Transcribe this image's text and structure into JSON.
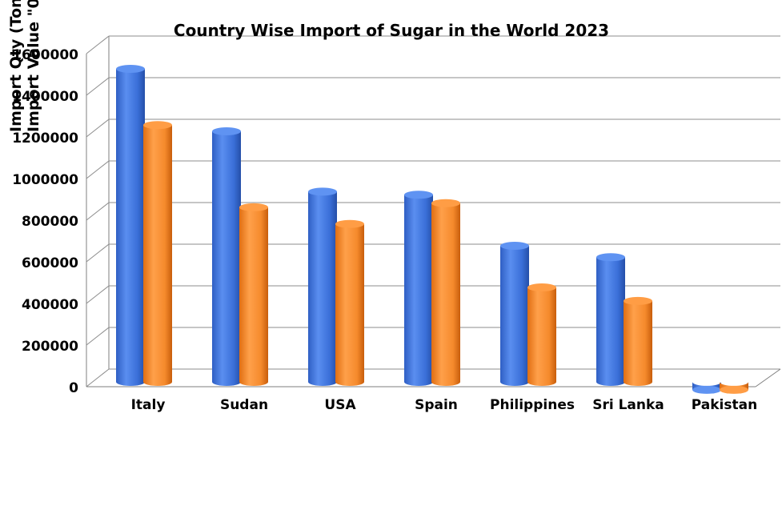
{
  "chart_data": {
    "type": "bar",
    "title": "Country Wise Import of Sugar in the World 2023",
    "ylabel_lines": [
      "Import Qty (Ton",
      "Import Value \"0"
    ],
    "categories": [
      "Italy",
      "Sudan",
      "USA",
      "Spain",
      "Philippines",
      "Sri Lanka",
      "Pakistan"
    ],
    "series": [
      {
        "values": [
          1550000,
          1250000,
          960000,
          945000,
          700000,
          645000,
          8000
        ]
      },
      {
        "values": [
          1280000,
          885000,
          805000,
          905000,
          500000,
          435000,
          8000
        ]
      }
    ],
    "ylim": [
      0,
      1600000
    ],
    "yticks": [
      0,
      200000,
      400000,
      600000,
      800000,
      1000000,
      1200000,
      1400000,
      1600000
    ],
    "grid": true,
    "colors": [
      "#3d73d9",
      "#f58a2c"
    ]
  }
}
